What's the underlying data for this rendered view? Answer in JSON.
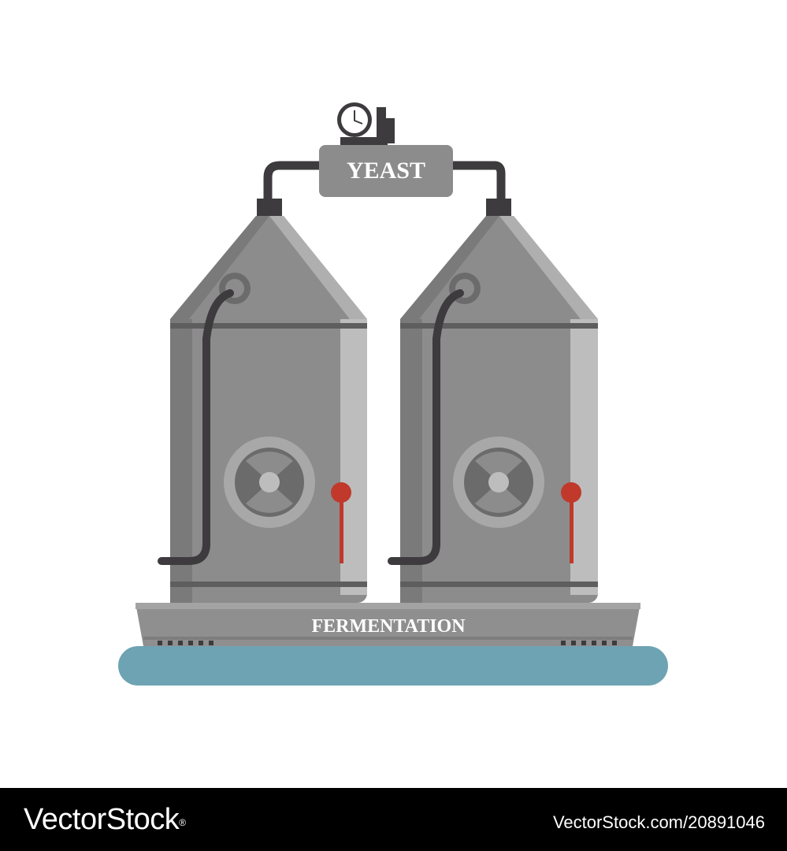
{
  "illustration": {
    "top_label": "YEAST",
    "base_label": "FERMENTATION",
    "icons": [
      "pressure-gauge-icon",
      "fermentation-tank-icon",
      "fan-icon",
      "thermometer-icon"
    ],
    "colors": {
      "tank_body": "#8c8c8c",
      "tank_highlight": "#bdbdbd",
      "pipe": "#3d3b3d",
      "valve_red": "#c0392b",
      "base_water": "#6ea3b3",
      "platform": "#8f8f8f"
    }
  },
  "footer": {
    "brand": "VectorStock",
    "registered_mark": "®",
    "stock_id": "VectorStock.com/20891046"
  }
}
